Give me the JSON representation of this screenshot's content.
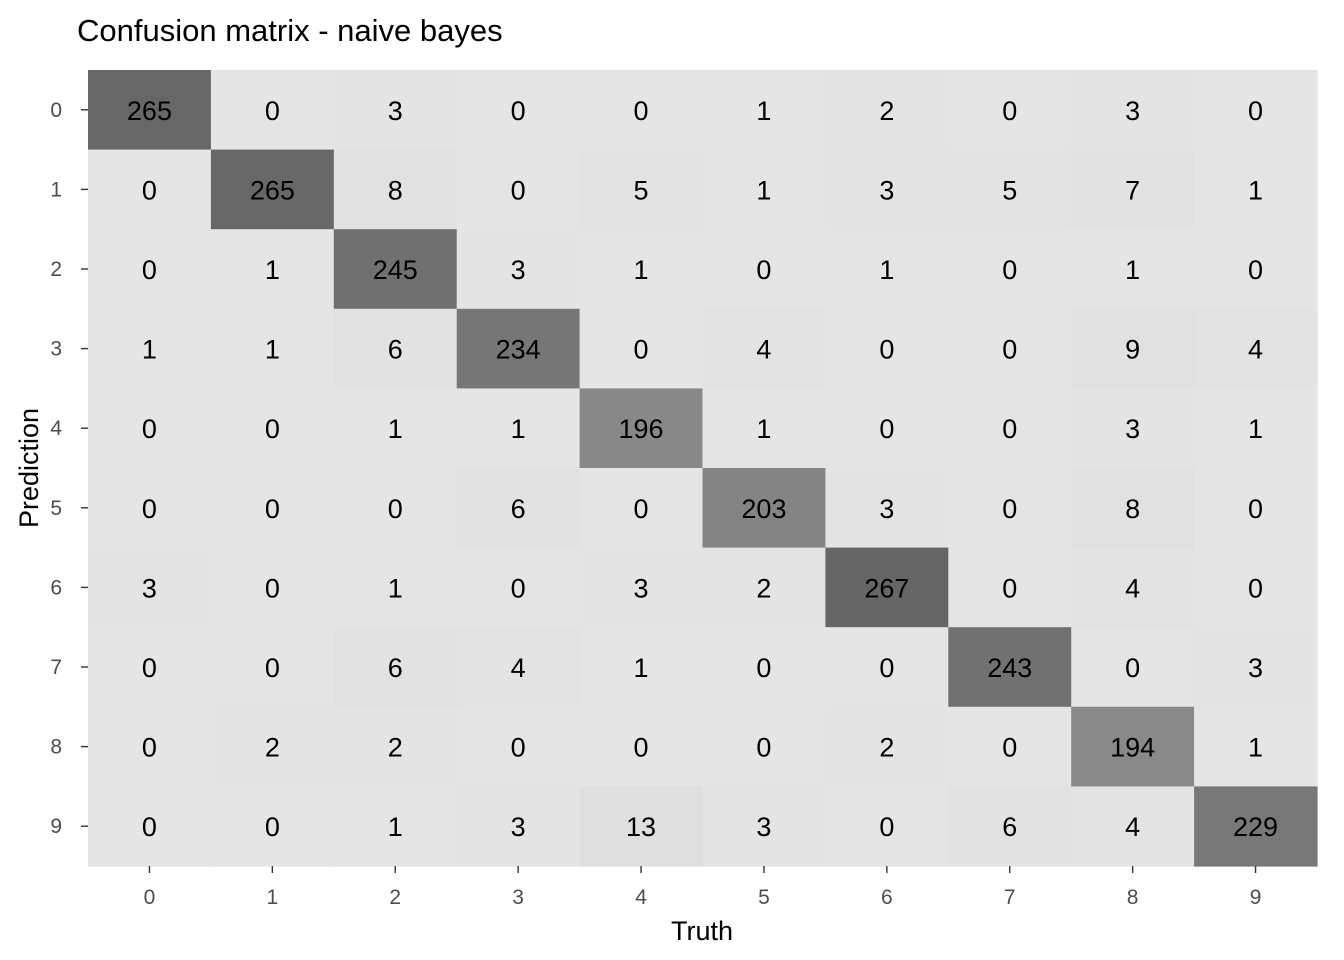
{
  "chart_data": {
    "type": "heatmap",
    "title": "Confusion matrix - naive bayes",
    "xlabel": "Truth",
    "ylabel": "Prediction",
    "x_categories": [
      "0",
      "1",
      "2",
      "3",
      "4",
      "5",
      "6",
      "7",
      "8",
      "9"
    ],
    "y_categories": [
      "0",
      "1",
      "2",
      "3",
      "4",
      "5",
      "6",
      "7",
      "8",
      "9"
    ],
    "rows_are": "Prediction",
    "columns_are": "Truth",
    "values": [
      [
        265,
        0,
        3,
        0,
        0,
        1,
        2,
        0,
        3,
        0
      ],
      [
        0,
        265,
        8,
        0,
        5,
        1,
        3,
        5,
        7,
        1
      ],
      [
        0,
        1,
        245,
        3,
        1,
        0,
        1,
        0,
        1,
        0
      ],
      [
        1,
        1,
        6,
        234,
        0,
        4,
        0,
        0,
        9,
        4
      ],
      [
        0,
        0,
        1,
        1,
        196,
        1,
        0,
        0,
        3,
        1
      ],
      [
        0,
        0,
        0,
        6,
        0,
        203,
        3,
        0,
        8,
        0
      ],
      [
        3,
        0,
        1,
        0,
        3,
        2,
        267,
        0,
        4,
        0
      ],
      [
        0,
        0,
        6,
        4,
        1,
        0,
        0,
        243,
        0,
        3
      ],
      [
        0,
        2,
        2,
        0,
        0,
        0,
        2,
        0,
        194,
        1
      ],
      [
        0,
        0,
        1,
        3,
        13,
        3,
        0,
        6,
        4,
        229
      ]
    ],
    "color_scale": {
      "low": "#e5e5e5",
      "high": "#666666"
    },
    "legend": "none",
    "grid": false
  }
}
